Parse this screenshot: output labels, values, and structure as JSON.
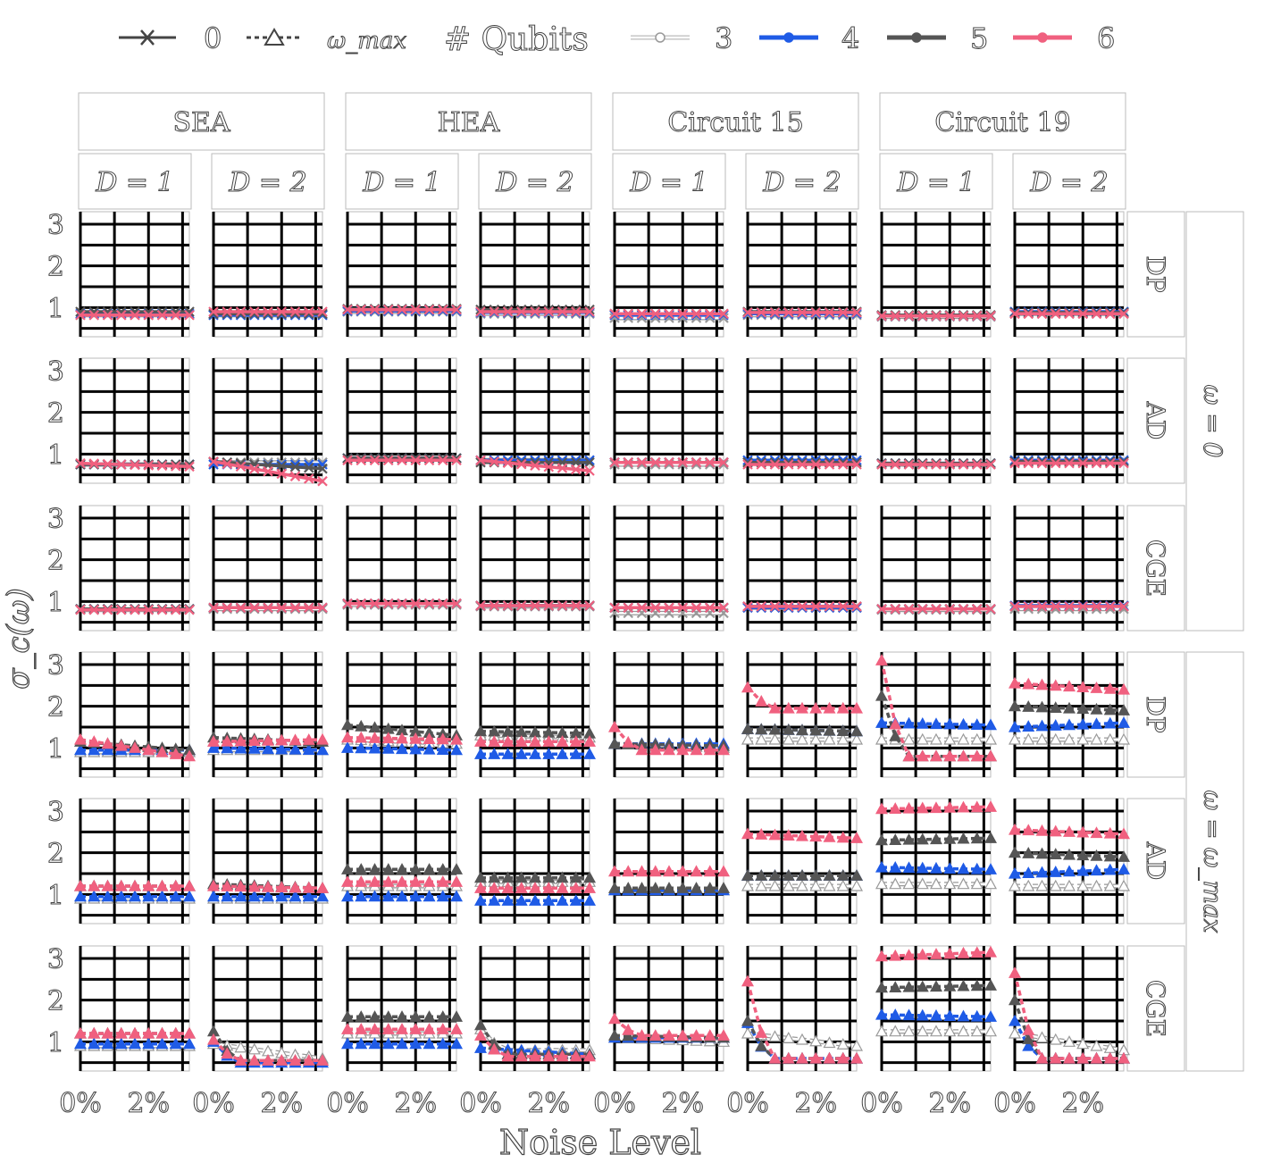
{
  "legend": {
    "linestyle_items": [
      "0",
      "ω_max"
    ],
    "qubit_title": "# Qubits",
    "qubit_items": [
      "3",
      "4",
      "5",
      "6"
    ]
  },
  "axes": {
    "xlabel": "Noise Level",
    "ylabel": "σ_c(ω)",
    "yticks": [
      "1",
      "2",
      "3"
    ],
    "xticks": [
      "0%",
      "2%"
    ],
    "ylim": [
      0.3,
      3.3
    ],
    "xlim": [
      0,
      3.2
    ],
    "grid": true
  },
  "column_groups": [
    "SEA",
    "HEA",
    "Circuit 15",
    "Circuit 19"
  ],
  "depths": [
    "D = 1",
    "D = 2"
  ],
  "rows": [
    "DP",
    "AD",
    "CGE",
    "DP",
    "AD",
    "CGE"
  ],
  "row_groups": [
    "ω = 0",
    "ω = ω_max"
  ],
  "colors": {
    "q3": "#ffffff",
    "q4": "#1f5be6",
    "q5": "#555555",
    "q6": "#f0607f"
  },
  "chart_data": {
    "type": "line",
    "x": [
      0,
      0.4,
      0.8,
      1.2,
      1.6,
      2.0,
      2.4,
      2.8,
      3.2
    ],
    "series_names": [
      "3",
      "4",
      "5",
      "6"
    ],
    "panels_omega0": [
      [
        0.82,
        0.85,
        0.9,
        0.82
      ],
      [
        0.82,
        0.82,
        0.85,
        0.9
      ],
      [
        0.9,
        0.92,
        0.97,
        0.95
      ],
      [
        0.85,
        0.88,
        0.95,
        0.9
      ],
      [
        0.75,
        0.82,
        0.85,
        0.85
      ],
      [
        0.82,
        0.85,
        0.9,
        0.88
      ],
      [
        0.78,
        0.8,
        0.82,
        0.8
      ],
      [
        0.85,
        0.9,
        0.88,
        0.85
      ],
      [
        0.75,
        0.75,
        0.75,
        0.7
      ],
      [
        0.8,
        0.75,
        0.65,
        0.35
      ],
      [
        0.9,
        0.9,
        0.9,
        0.85
      ],
      [
        0.85,
        0.85,
        0.8,
        0.6
      ],
      [
        0.75,
        0.8,
        0.8,
        0.8
      ],
      [
        0.8,
        0.85,
        0.8,
        0.75
      ],
      [
        0.75,
        0.78,
        0.78,
        0.75
      ],
      [
        0.82,
        0.85,
        0.82,
        0.78
      ],
      [
        0.8,
        0.82,
        0.82,
        0.8
      ],
      [
        0.82,
        0.85,
        0.85,
        0.85
      ],
      [
        0.92,
        0.95,
        0.95,
        0.95
      ],
      [
        0.88,
        0.9,
        0.9,
        0.9
      ],
      [
        0.72,
        0.85,
        0.85,
        0.85
      ],
      [
        0.85,
        0.85,
        0.88,
        0.88
      ],
      [
        0.8,
        0.82,
        0.82,
        0.82
      ],
      [
        0.82,
        0.9,
        0.88,
        0.88
      ]
    ],
    "panels_omegamax": [
      [
        [
          0.9,
          0.9
        ],
        [
          0.95,
          0.95
        ],
        [
          1.15,
          0.95
        ],
        [
          1.2,
          0.8
        ]
      ],
      [
        [
          0.95,
          0.95
        ],
        [
          1.0,
          0.95
        ],
        [
          1.25,
          1.15
        ],
        [
          1.15,
          1.2
        ]
      ],
      [
        [
          1.2,
          1.1
        ],
        [
          1.0,
          0.95
        ],
        [
          1.55,
          1.3
        ],
        [
          1.25,
          1.2
        ]
      ],
      [
        [
          1.3,
          1.25
        ],
        [
          0.85,
          0.85
        ],
        [
          1.4,
          1.35
        ],
        [
          1.15,
          1.15
        ]
      ],
      [
        [
          1.1,
          1.0
        ],
        [
          1.1,
          1.1
        ],
        [
          1.1,
          1.05
        ],
        [
          1.5,
          0.95
        ]
      ],
      [
        [
          1.2,
          1.2
        ],
        [
          1.45,
          1.4
        ],
        [
          1.45,
          1.4
        ],
        [
          2.45,
          1.95
        ]
      ],
      [
        [
          1.2,
          1.2
        ],
        [
          1.6,
          1.55
        ],
        [
          2.25,
          0.8
        ],
        [
          3.1,
          0.8
        ]
      ],
      [
        [
          1.2,
          1.2
        ],
        [
          1.5,
          1.6
        ],
        [
          2.0,
          1.9
        ],
        [
          2.55,
          2.4
        ]
      ],
      [
        [
          0.9,
          0.9
        ],
        [
          0.95,
          0.95
        ],
        [
          1.2,
          1.2
        ],
        [
          1.2,
          1.2
        ]
      ],
      [
        [
          0.9,
          0.9
        ],
        [
          0.95,
          0.95
        ],
        [
          1.25,
          1.15
        ],
        [
          1.2,
          1.15
        ]
      ],
      [
        [
          1.2,
          1.2
        ],
        [
          0.95,
          0.95
        ],
        [
          1.6,
          1.6
        ],
        [
          1.3,
          1.3
        ]
      ],
      [
        [
          1.3,
          1.3
        ],
        [
          0.85,
          0.85
        ],
        [
          1.4,
          1.4
        ],
        [
          1.15,
          1.15
        ]
      ],
      [
        [
          1.1,
          1.1
        ],
        [
          1.1,
          1.1
        ],
        [
          1.15,
          1.15
        ],
        [
          1.55,
          1.55
        ]
      ],
      [
        [
          1.2,
          1.2
        ],
        [
          1.45,
          1.45
        ],
        [
          1.45,
          1.45
        ],
        [
          2.45,
          2.35
        ]
      ],
      [
        [
          1.25,
          1.25
        ],
        [
          1.65,
          1.6
        ],
        [
          2.3,
          2.35
        ],
        [
          3.05,
          3.1
        ]
      ],
      [
        [
          1.2,
          1.2
        ],
        [
          1.5,
          1.6
        ],
        [
          2.0,
          1.9
        ],
        [
          2.55,
          2.45
        ]
      ],
      [
        [
          0.9,
          0.9
        ],
        [
          0.95,
          0.95
        ],
        [
          1.2,
          1.2
        ],
        [
          1.2,
          1.2
        ]
      ],
      [
        [
          0.95,
          0.6
        ],
        [
          1.0,
          0.5
        ],
        [
          1.25,
          0.55
        ],
        [
          1.05,
          0.55
        ]
      ],
      [
        [
          1.2,
          1.2
        ],
        [
          0.95,
          0.95
        ],
        [
          1.6,
          1.6
        ],
        [
          1.3,
          1.3
        ]
      ],
      [
        [
          1.3,
          0.8
        ],
        [
          0.85,
          0.7
        ],
        [
          1.4,
          0.7
        ],
        [
          1.15,
          0.65
        ]
      ],
      [
        [
          1.1,
          1.0
        ],
        [
          1.1,
          1.1
        ],
        [
          1.15,
          1.1
        ],
        [
          1.55,
          1.15
        ]
      ],
      [
        [
          1.2,
          0.9
        ],
        [
          1.45,
          0.6
        ],
        [
          1.5,
          0.6
        ],
        [
          2.45,
          0.6
        ]
      ],
      [
        [
          1.25,
          1.25
        ],
        [
          1.65,
          1.6
        ],
        [
          2.3,
          2.35
        ],
        [
          3.05,
          3.15
        ]
      ],
      [
        [
          1.2,
          0.8
        ],
        [
          1.5,
          0.6
        ],
        [
          2.0,
          0.6
        ],
        [
          2.65,
          0.6
        ]
      ]
    ]
  }
}
